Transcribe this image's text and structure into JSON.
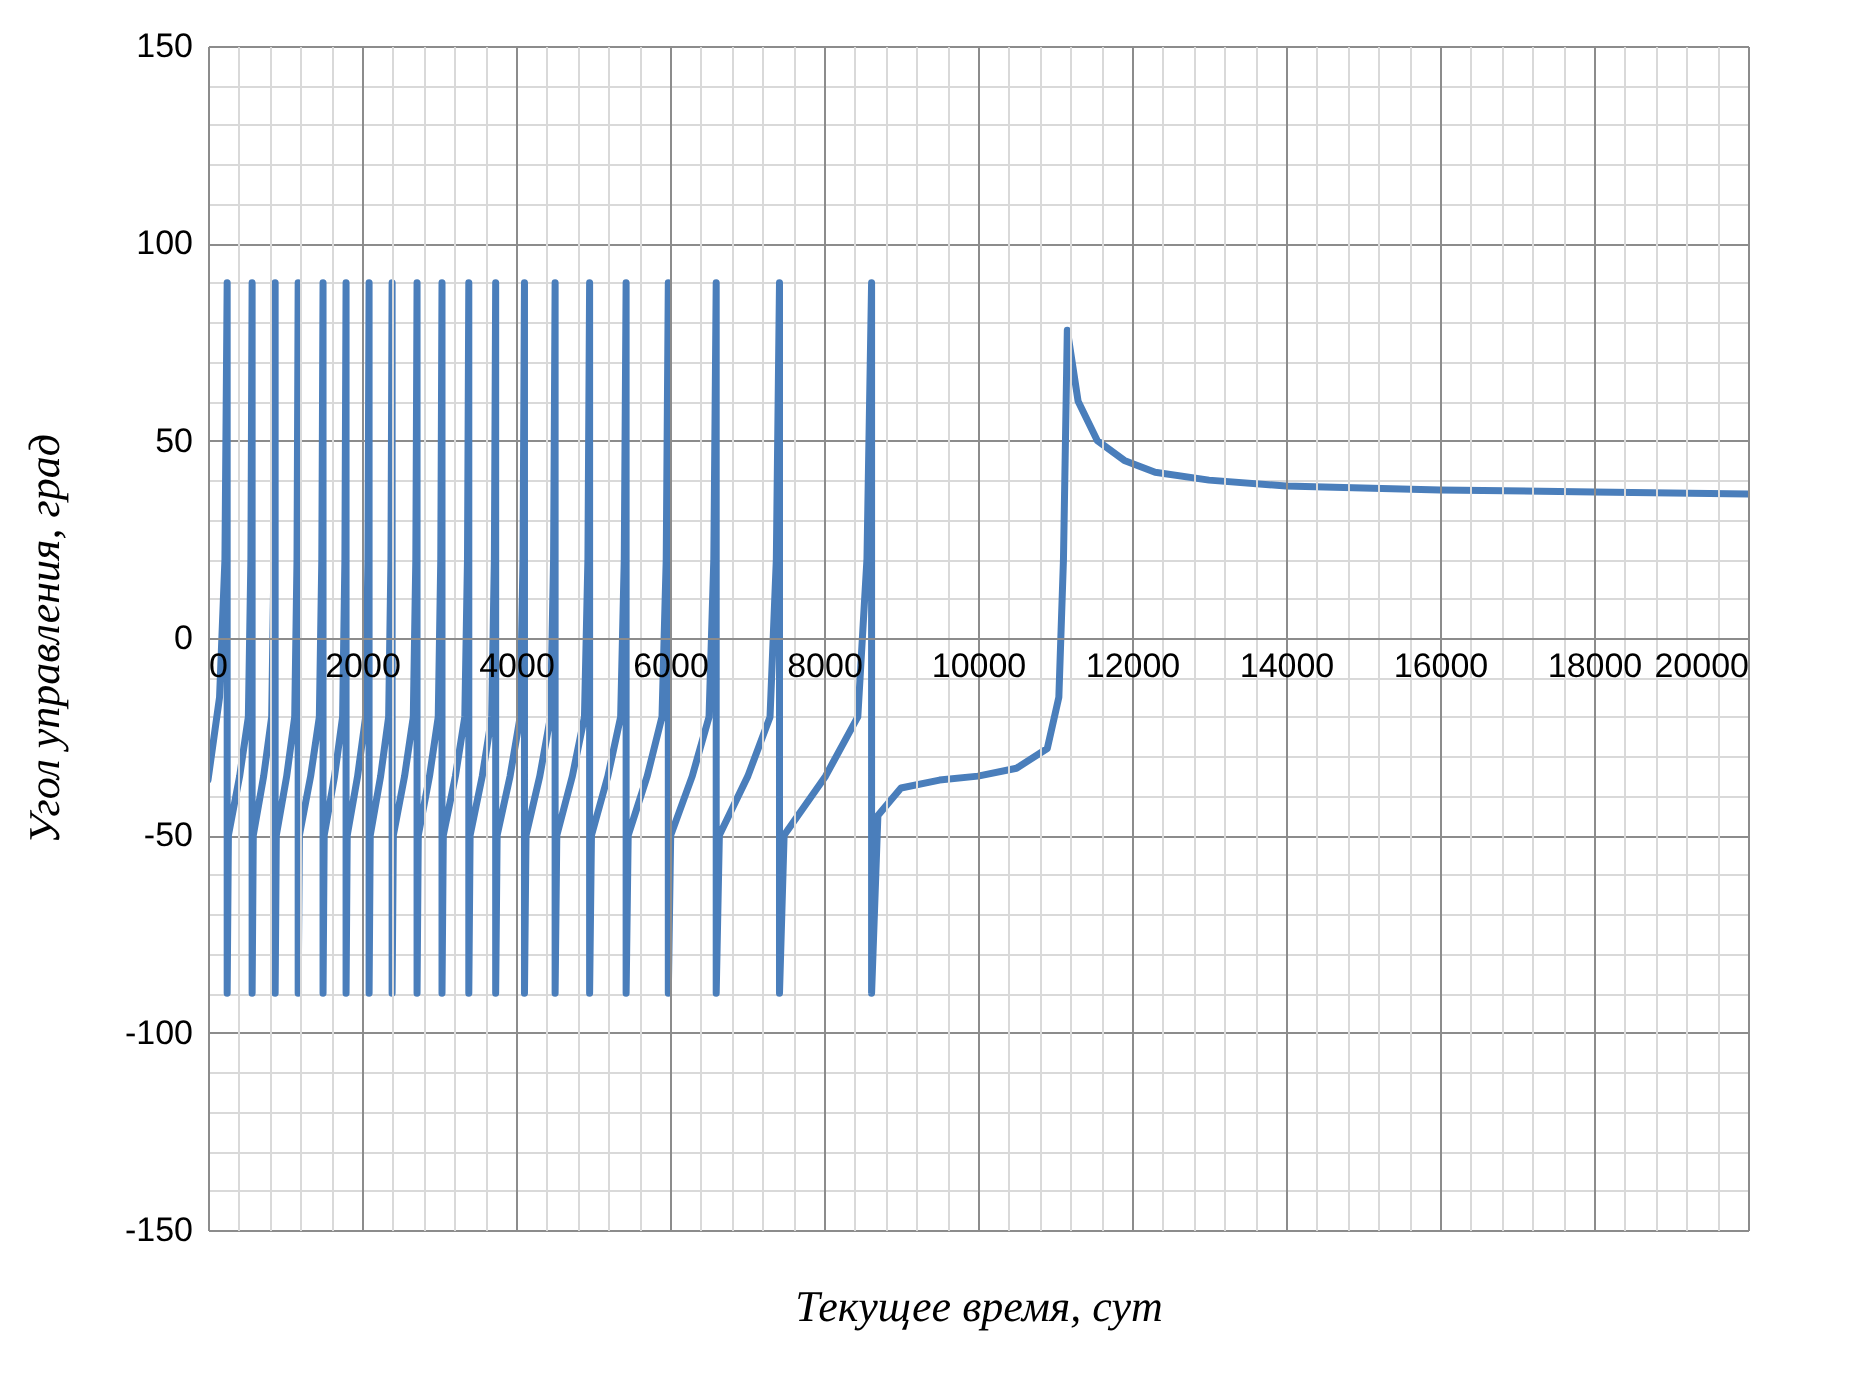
{
  "chart_data": {
    "type": "line",
    "xlabel": "Текущее время, сут",
    "ylabel": "Угол управления, град",
    "grid": true,
    "xlim": [
      0,
      20000
    ],
    "xticks": [
      0,
      {
        "value": 400,
        "label": null
      },
      {
        "value": 800,
        "label": null
      },
      {
        "value": 1200,
        "label": null
      },
      {
        "value": 1600,
        "label": null
      },
      2000,
      {
        "value": 2400,
        "label": null
      },
      {
        "value": 2800,
        "label": null
      },
      {
        "value": 3200,
        "label": null
      },
      {
        "value": 3600,
        "label": null
      },
      4000,
      {
        "value": 4400,
        "label": null
      },
      {
        "value": 4800,
        "label": null
      },
      {
        "value": 5200,
        "label": null
      },
      {
        "value": 5600,
        "label": null
      },
      6000,
      {
        "value": 6400,
        "label": null
      },
      {
        "value": 6800,
        "label": null
      },
      {
        "value": 7200,
        "label": null
      },
      {
        "value": 7600,
        "label": null
      },
      8000,
      {
        "value": 8400,
        "label": null
      },
      {
        "value": 8800,
        "label": null
      },
      {
        "value": 9200,
        "label": null
      },
      {
        "value": 9600,
        "label": null
      },
      10000,
      {
        "value": 10400,
        "label": null
      },
      {
        "value": 10800,
        "label": null
      },
      {
        "value": 11200,
        "label": null
      },
      {
        "value": 11600,
        "label": null
      },
      12000,
      {
        "value": 12400,
        "label": null
      },
      {
        "value": 12800,
        "label": null
      },
      {
        "value": 13200,
        "label": null
      },
      {
        "value": 13600,
        "label": null
      },
      14000,
      {
        "value": 14400,
        "label": null
      },
      {
        "value": 14800,
        "label": null
      },
      {
        "value": 15200,
        "label": null
      },
      {
        "value": 15600,
        "label": null
      },
      16000,
      {
        "value": 16400,
        "label": null
      },
      {
        "value": 16800,
        "label": null
      },
      {
        "value": 17200,
        "label": null
      },
      {
        "value": 17600,
        "label": null
      },
      18000,
      {
        "value": 18400,
        "label": null
      },
      {
        "value": 18800,
        "label": null
      },
      {
        "value": 19200,
        "label": null
      },
      {
        "value": 19600,
        "label": null
      },
      20000
    ],
    "ylim": [
      -150,
      150
    ],
    "yticks": [
      -150,
      {
        "value": -140,
        "label": null
      },
      {
        "value": -130,
        "label": null
      },
      {
        "value": -120,
        "label": null
      },
      {
        "value": -110,
        "label": null
      },
      -100,
      {
        "value": -90,
        "label": null
      },
      {
        "value": -80,
        "label": null
      },
      {
        "value": -70,
        "label": null
      },
      {
        "value": -60,
        "label": null
      },
      -50,
      {
        "value": -40,
        "label": null
      },
      {
        "value": -30,
        "label": null
      },
      {
        "value": -20,
        "label": null
      },
      {
        "value": -10,
        "label": null
      },
      0,
      {
        "value": 10,
        "label": null
      },
      {
        "value": 20,
        "label": null
      },
      {
        "value": 30,
        "label": null
      },
      {
        "value": 40,
        "label": null
      },
      50,
      {
        "value": 60,
        "label": null
      },
      {
        "value": 70,
        "label": null
      },
      {
        "value": 80,
        "label": null
      },
      {
        "value": 90,
        "label": null
      },
      100,
      {
        "value": 110,
        "label": null
      },
      {
        "value": 120,
        "label": null
      },
      {
        "value": 130,
        "label": null
      },
      {
        "value": 140,
        "label": null
      },
      150
    ],
    "series": [
      {
        "color": "#4a7ebb",
        "x": [
          0,
          150,
          220,
          249,
          249,
          265,
          411,
          524,
          557,
          573,
          573,
          588,
          723,
          827,
          857,
          872,
          872,
          887,
          1022,
          1126,
          1156,
          1171,
          1171,
          1187,
          1333,
          1446,
          1478,
          1494,
          1494,
          1509,
          1644,
          1748,
          1778,
          1793,
          1793,
          1808,
          1943,
          2047,
          2077,
          2092,
          2092,
          2107,
          2242,
          2346,
          2376,
          2391,
          2391,
          2407,
          2553,
          2666,
          2699,
          2715,
          2715,
          2731,
          2877,
          2990,
          3023,
          3039,
          3039,
          3056,
          3213,
          3335,
          3370,
          3387,
          3387,
          3404,
          3562,
          3684,
          3719,
          3736,
          3736,
          3755,
          3923,
          4054,
          4091,
          4110,
          4110,
          4130,
          4309,
          4448,
          4488,
          4508,
          4508,
          4530,
          4732,
          4889,
          4934,
          4956,
          4956,
          4980,
          5193,
          5359,
          5406,
          5430,
          5430,
          5457,
          5704,
          5896,
          5951,
          5978,
          5978,
          6009,
          6289,
          6507,
          6569,
          6600,
          6600,
          6641,
          7011,
          7299,
          7381,
          7422,
          7422,
          7482,
          8020,
          8439,
          8558,
          8618,
          8618,
          8700,
          9000,
          9500,
          10000,
          10500,
          10900,
          11050,
          11110,
          11160,
          11300,
          11550,
          11900,
          12300,
          13000,
          14000,
          16000,
          18000,
          20000
        ],
        "values": [
          -36,
          -15,
          20,
          90,
          -90,
          -50,
          -35,
          -20,
          20,
          90,
          -90,
          -50,
          -35,
          -20,
          20,
          90,
          -90,
          -50,
          -35,
          -20,
          20,
          90,
          -90,
          -50,
          -35,
          -20,
          20,
          90,
          -90,
          -50,
          -35,
          -20,
          20,
          90,
          -90,
          -50,
          -35,
          -20,
          20,
          90,
          -90,
          -50,
          -35,
          -20,
          20,
          90,
          -90,
          -50,
          -35,
          -20,
          20,
          90,
          -90,
          -50,
          -35,
          -20,
          20,
          90,
          -90,
          -50,
          -35,
          -20,
          20,
          90,
          -90,
          -50,
          -35,
          -20,
          20,
          90,
          -90,
          -50,
          -35,
          -20,
          20,
          90,
          -90,
          -50,
          -35,
          -20,
          20,
          90,
          -90,
          -50,
          -35,
          -20,
          20,
          90,
          -90,
          -50,
          -35,
          -20,
          20,
          90,
          -90,
          -50,
          -35,
          -20,
          20,
          90,
          -90,
          -50,
          -35,
          -20,
          20,
          90,
          -90,
          -50,
          -35,
          -20,
          20,
          90,
          -90,
          -50,
          -35,
          -20,
          20,
          90,
          -90,
          -45,
          -38,
          -36,
          -35,
          -33,
          -28,
          -15,
          20,
          78,
          60,
          50,
          45,
          42,
          40,
          38.5,
          37.5,
          37,
          36.5
        ]
      }
    ]
  }
}
